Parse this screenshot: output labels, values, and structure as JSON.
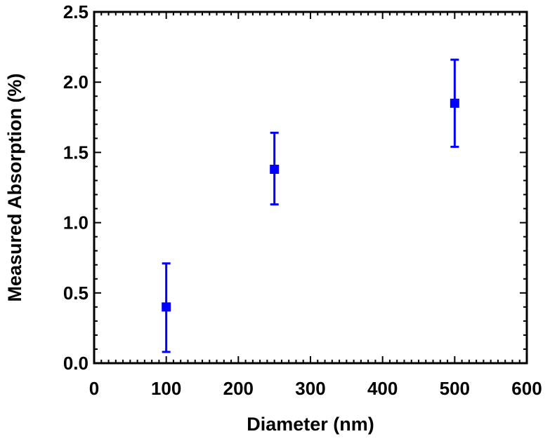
{
  "chart_data": {
    "type": "scatter",
    "title": "",
    "xlabel": "Diameter (nm)",
    "ylabel": "Measured Absorption (%)",
    "xlim": [
      0,
      600
    ],
    "ylim": [
      0,
      2.5
    ],
    "x_ticks": [
      0,
      100,
      200,
      300,
      400,
      500,
      600
    ],
    "x_tick_labels": [
      "0",
      "100",
      "200",
      "300",
      "400",
      "500",
      "600"
    ],
    "y_ticks": [
      0,
      0.5,
      1.0,
      1.5,
      2.0,
      2.5
    ],
    "y_tick_labels": [
      "0.0",
      "0.5",
      "1.0",
      "1.5",
      "2.0",
      "2.5"
    ],
    "grid": false,
    "legend": "none",
    "marker_color": "#0000ff",
    "series": [
      {
        "points": [
          {
            "x": 100,
            "y": 0.4,
            "err_low": 0.08,
            "err_high": 0.71
          },
          {
            "x": 250,
            "y": 1.38,
            "err_low": 1.13,
            "err_high": 1.64
          },
          {
            "x": 500,
            "y": 1.85,
            "err_low": 1.54,
            "err_high": 2.16
          }
        ]
      }
    ]
  }
}
